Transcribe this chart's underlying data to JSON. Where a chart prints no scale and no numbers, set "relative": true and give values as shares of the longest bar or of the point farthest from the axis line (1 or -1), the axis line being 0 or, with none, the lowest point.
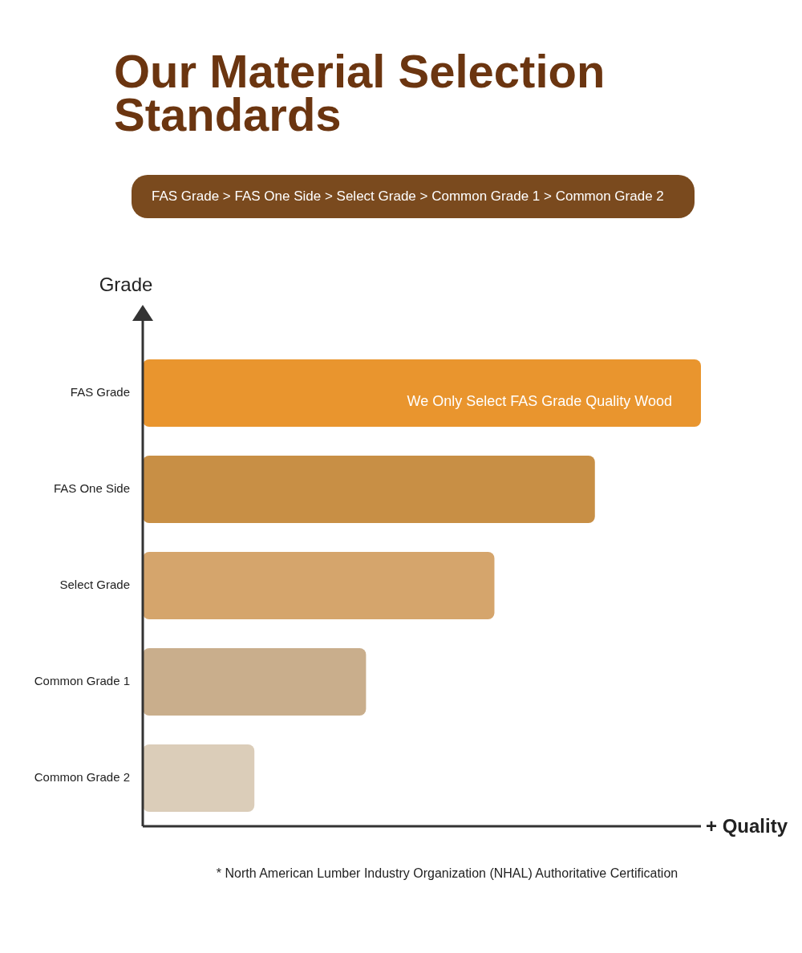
{
  "chart_data": {
    "type": "bar",
    "orientation": "horizontal",
    "relative": true,
    "title": "Our Material Selection Standards",
    "subtitle": "FAS Grade > FAS One Side > Select Grade > Common Grade 1 > Common Grade 2",
    "ylabel": "Grade",
    "xlabel": "+ Quality",
    "categories": [
      "FAS Grade",
      "FAS One Side",
      "Select Grade",
      "Common Grade 1",
      "Common Grade 2"
    ],
    "values": [
      1,
      0.81,
      0.63,
      0.4,
      0.2
    ],
    "colors": [
      "#e9952e",
      "#c88f45",
      "#d5a56c",
      "#c9ae8c",
      "#dbcdb9"
    ],
    "annotations": [
      "We Only Select FAS Grade Quality Wood",
      "* North American Lumber Industry Organization (NHAL) Authoritative Certification"
    ],
    "legend": false
  }
}
